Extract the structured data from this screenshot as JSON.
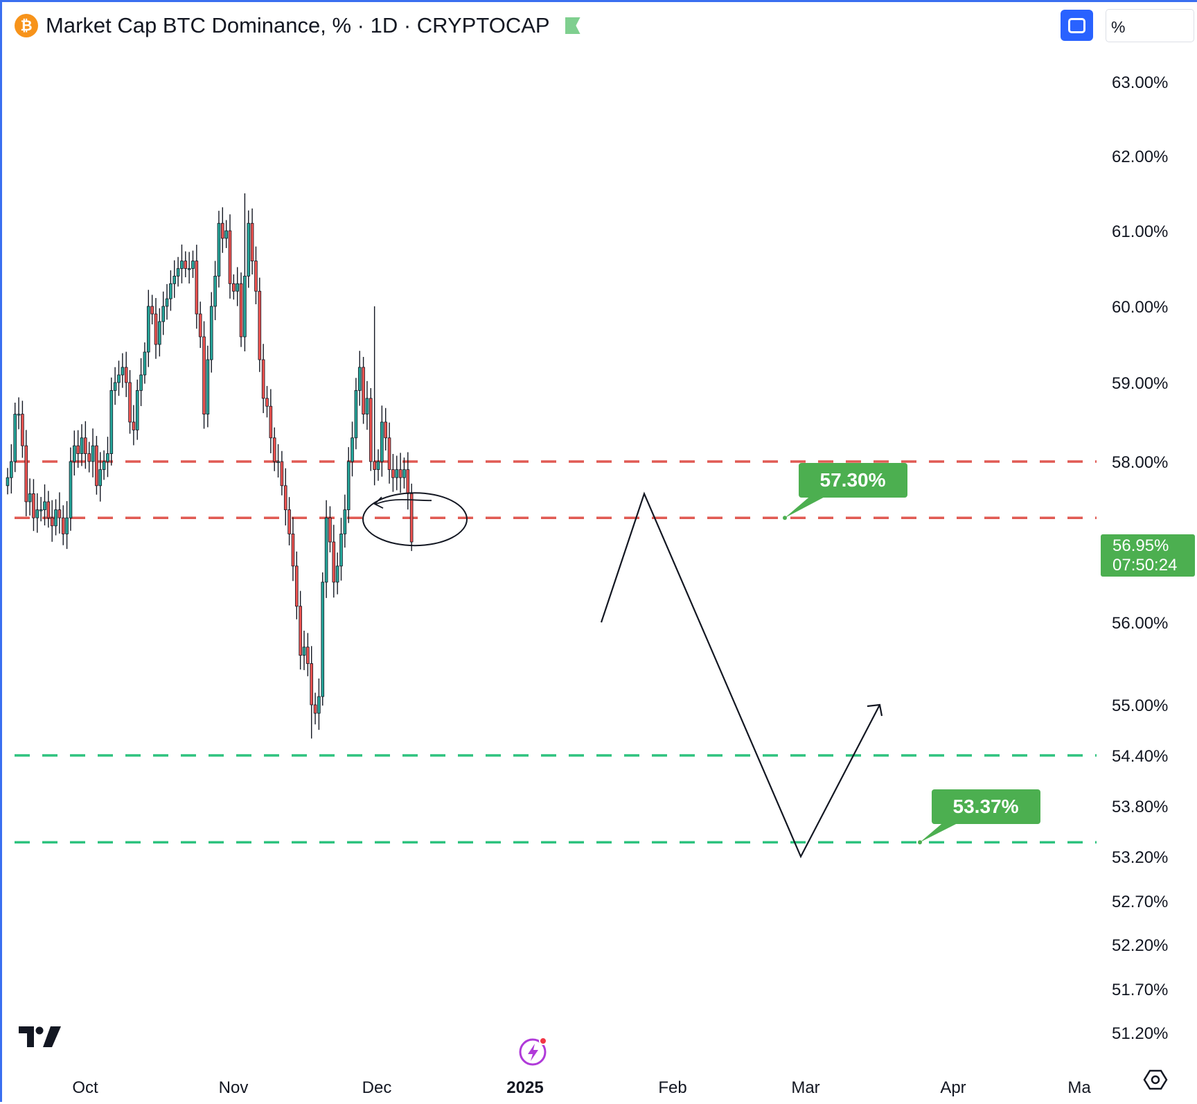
{
  "header": {
    "symbol_icon": "₿",
    "title": "Market Cap BTC Dominance, % · 1D · CRYPTOCAP",
    "scale_label": "%"
  },
  "icons": [
    "bitcoin-logo-icon",
    "flag-icon",
    "fullscreen-icon",
    "tradingview-logo-icon",
    "lightning-icon",
    "settings-icon"
  ],
  "colors": {
    "up": "#26a69a",
    "down": "#ef5350",
    "resistance_line": "#e05a53",
    "support_line": "#2ec27e",
    "label_green": "#4caf50",
    "accent_blue": "#2962ff"
  },
  "chart_data": {
    "type": "candlestick",
    "y_range": [
      51.0,
      63.4
    ],
    "y_ticks": [
      "63.00%",
      "62.00%",
      "61.00%",
      "60.00%",
      "59.00%",
      "58.00%",
      "56.00%",
      "55.00%",
      "54.40%",
      "53.80%",
      "53.20%",
      "52.70%",
      "52.20%",
      "51.70%",
      "51.20%"
    ],
    "x_ticks": [
      "Oct",
      "Nov",
      "Dec",
      "2025",
      "Feb",
      "Mar",
      "Apr",
      "Ma"
    ],
    "current_price": "56.95%",
    "countdown": "07:50:24",
    "price_path": [
      57.8,
      58.0,
      58.6,
      58.6,
      58.2,
      57.5,
      57.6,
      57.3,
      57.4,
      57.4,
      57.5,
      57.3,
      57.2,
      57.4,
      57.3,
      57.1,
      57.3,
      58.0,
      58.2,
      58.1,
      58.3,
      58.1,
      58.0,
      58.2,
      57.7,
      57.9,
      58.0,
      58.1,
      58.9,
      59.0,
      59.1,
      59.2,
      59.0,
      58.5,
      58.4,
      58.9,
      59.1,
      59.4,
      60.0,
      59.9,
      59.5,
      59.8,
      60.0,
      60.1,
      60.3,
      60.4,
      60.5,
      60.6,
      60.5,
      60.5,
      60.6,
      59.9,
      59.6,
      58.6,
      59.3,
      60.0,
      60.4,
      61.1,
      60.9,
      61.0,
      60.3,
      60.2,
      60.3,
      59.6,
      60.4,
      61.1,
      60.6,
      60.2,
      59.3,
      58.8,
      58.7,
      58.3,
      58.0,
      58.0,
      57.7,
      57.4,
      57.1,
      56.7,
      56.2,
      55.6,
      55.7,
      55.5,
      55.0,
      54.9,
      55.1,
      56.5,
      57.3,
      57.0,
      56.5,
      56.7,
      57.1,
      57.4,
      58.0,
      58.3,
      58.9,
      59.2,
      58.6,
      58.8,
      58.0,
      57.9,
      58.0,
      58.5,
      58.3,
      57.9,
      57.8,
      57.9,
      57.8,
      57.9,
      57.6,
      57.0
    ],
    "candle_wick_extremes": {
      "high": 61.5,
      "low": 54.6
    },
    "levels": [
      {
        "value": 58.0,
        "kind": "resistance"
      },
      {
        "value": 57.3,
        "kind": "resistance",
        "label": "57.30%"
      },
      {
        "value": 54.4,
        "kind": "support"
      },
      {
        "value": 53.37,
        "kind": "support",
        "label": "53.37%"
      }
    ],
    "projection": {
      "points": [
        [
          0,
          56.0
        ],
        [
          1,
          57.6
        ],
        [
          2,
          53.2
        ],
        [
          3,
          55.0
        ]
      ],
      "arrow_at_end": true
    },
    "annotations": [
      "circle around breakdown zone near 57.30%"
    ]
  }
}
